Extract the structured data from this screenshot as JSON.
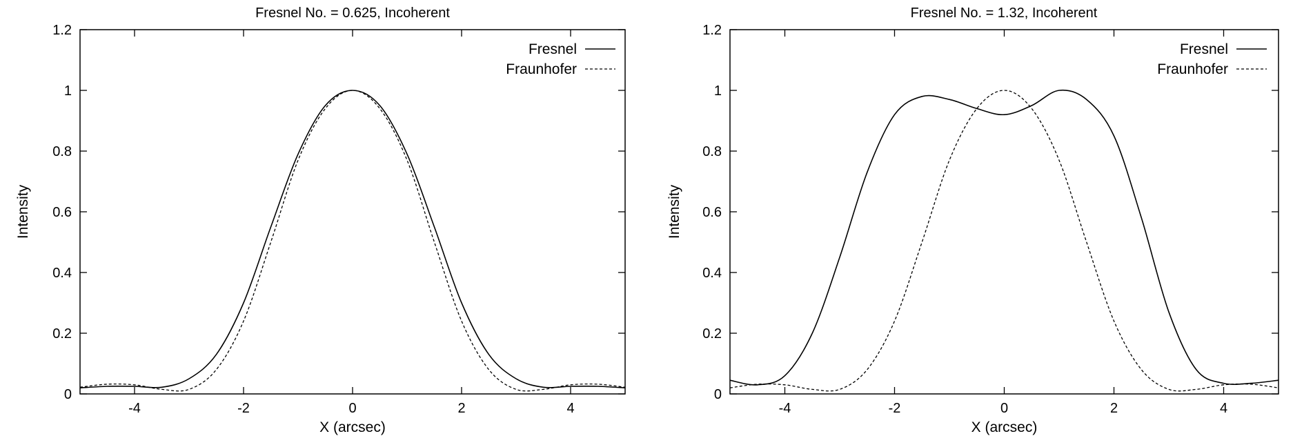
{
  "colors": {
    "line": "#000000",
    "background": "#ffffff"
  },
  "chart_data": [
    {
      "type": "line",
      "title": "Fresnel No. = 0.625, Incoherent",
      "xlabel": "X (arcsec)",
      "ylabel": "Intensity",
      "xlim": [
        -5,
        5
      ],
      "ylim": [
        0,
        1.2
      ],
      "xticks": [
        -4,
        -2,
        0,
        2,
        4
      ],
      "yticks": [
        0,
        0.2,
        0.4,
        0.6,
        0.8,
        1,
        1.2
      ],
      "xtick_labels": [
        "-4",
        "-2",
        "0",
        "2",
        "4"
      ],
      "ytick_labels": [
        "0",
        "0.2",
        "0.4",
        "0.6",
        "0.8",
        "1",
        "1.2"
      ],
      "grid": false,
      "legend_position": "top-right",
      "series": [
        {
          "name": "Fresnel",
          "style": "solid",
          "x": [
            -5,
            -4.5,
            -4,
            -3.5,
            -3,
            -2.5,
            -2,
            -1.5,
            -1,
            -0.5,
            0,
            0.5,
            1,
            1.5,
            2,
            2.5,
            3,
            3.5,
            4,
            4.5,
            5
          ],
          "y": [
            0.02,
            0.025,
            0.025,
            0.022,
            0.05,
            0.13,
            0.3,
            0.55,
            0.79,
            0.95,
            1.0,
            0.95,
            0.79,
            0.55,
            0.3,
            0.13,
            0.05,
            0.022,
            0.025,
            0.025,
            0.02
          ]
        },
        {
          "name": "Fraunhofer",
          "style": "dashed",
          "x": [
            -5,
            -4.5,
            -4,
            -3.5,
            -3,
            -2.5,
            -2,
            -1.5,
            -1,
            -0.5,
            0,
            0.5,
            1,
            1.5,
            2,
            2.5,
            3,
            3.5,
            4,
            4.5,
            5
          ],
          "y": [
            0.022,
            0.032,
            0.03,
            0.015,
            0.015,
            0.08,
            0.24,
            0.5,
            0.77,
            0.94,
            1.0,
            0.94,
            0.77,
            0.5,
            0.24,
            0.08,
            0.015,
            0.015,
            0.03,
            0.032,
            0.022
          ]
        }
      ]
    },
    {
      "type": "line",
      "title": "Fresnel No. = 1.32, Incoherent",
      "xlabel": "X (arcsec)",
      "ylabel": "Intensity",
      "xlim": [
        -5,
        5
      ],
      "ylim": [
        0,
        1.2
      ],
      "xticks": [
        -4,
        -2,
        0,
        2,
        4
      ],
      "yticks": [
        0,
        0.2,
        0.4,
        0.6,
        0.8,
        1,
        1.2
      ],
      "xtick_labels": [
        "-4",
        "-2",
        "0",
        "2",
        "4"
      ],
      "ytick_labels": [
        "0",
        "0.2",
        "0.4",
        "0.6",
        "0.8",
        "1",
        "1.2"
      ],
      "grid": false,
      "legend_position": "top-right",
      "series": [
        {
          "name": "Fresnel",
          "style": "solid",
          "x": [
            -5,
            -4.5,
            -4,
            -3.5,
            -3,
            -2.5,
            -2,
            -1.5,
            -1,
            -0.5,
            0,
            0.5,
            1,
            1.5,
            2,
            2.5,
            3,
            3.5,
            4,
            4.5,
            5
          ],
          "y": [
            0.045,
            0.03,
            0.06,
            0.2,
            0.45,
            0.73,
            0.92,
            0.98,
            0.97,
            0.94,
            0.92,
            0.95,
            1.0,
            0.97,
            0.85,
            0.58,
            0.27,
            0.08,
            0.035,
            0.035,
            0.045
          ]
        },
        {
          "name": "Fraunhofer",
          "style": "dashed",
          "x": [
            -5,
            -4.5,
            -4,
            -3.5,
            -3,
            -2.5,
            -2,
            -1.5,
            -1,
            -0.5,
            0,
            0.5,
            1,
            1.5,
            2,
            2.5,
            3,
            3.5,
            4,
            4.5,
            5
          ],
          "y": [
            0.02,
            0.032,
            0.03,
            0.015,
            0.015,
            0.08,
            0.24,
            0.5,
            0.77,
            0.94,
            1.0,
            0.94,
            0.77,
            0.5,
            0.24,
            0.08,
            0.015,
            0.015,
            0.03,
            0.032,
            0.02
          ]
        }
      ]
    }
  ]
}
